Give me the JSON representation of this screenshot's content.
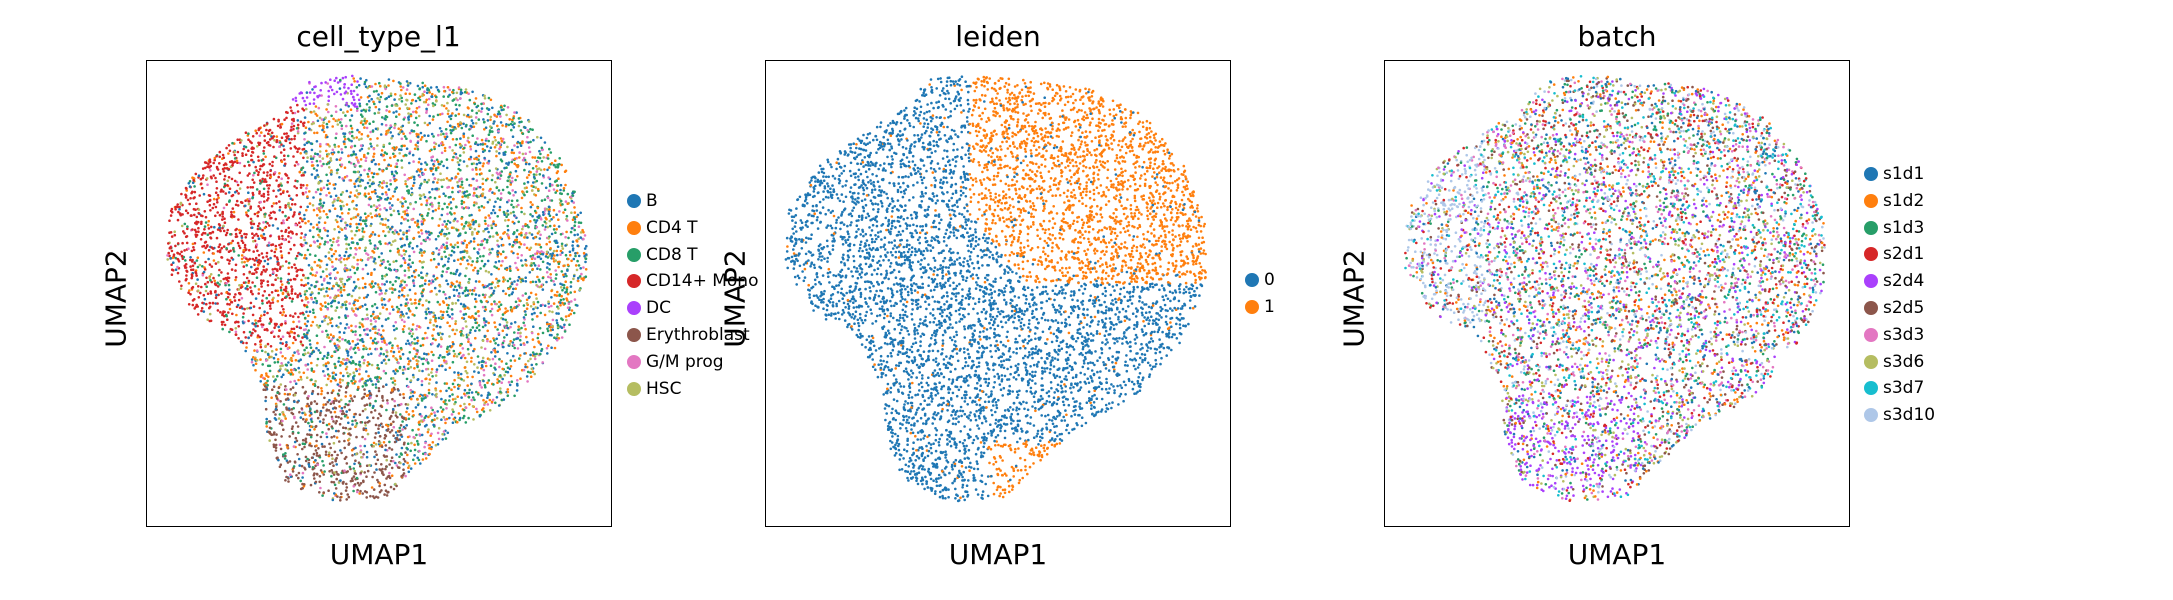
{
  "chart_data": [
    {
      "type": "scatter",
      "title": "cell_type_l1",
      "xlabel": "UMAP1",
      "ylabel": "UMAP2",
      "grid": false,
      "legend_position": "right",
      "series": [
        {
          "name": "B",
          "color": "#1f77b4",
          "weight": 0.1
        },
        {
          "name": "CD4 T",
          "color": "#ff7f0e",
          "weight": 0.22
        },
        {
          "name": "CD8 T",
          "color": "#279e68",
          "weight": 0.18
        },
        {
          "name": "CD14+ Mono",
          "color": "#d62728",
          "weight": 0.18
        },
        {
          "name": "DC",
          "color": "#aa40fc",
          "weight": 0.02
        },
        {
          "name": "Erythroblast",
          "color": "#8c564b",
          "weight": 0.1
        },
        {
          "name": "G/M prog",
          "color": "#e377c2",
          "weight": 0.1
        },
        {
          "name": "HSC",
          "color": "#b5bd61",
          "weight": 0.1
        }
      ]
    },
    {
      "type": "scatter",
      "title": "leiden",
      "xlabel": "UMAP1",
      "ylabel": "UMAP2",
      "grid": false,
      "legend_position": "right",
      "series": [
        {
          "name": "0",
          "color": "#1f77b4",
          "weight": 0.62
        },
        {
          "name": "1",
          "color": "#ff7f0e",
          "weight": 0.38
        }
      ]
    },
    {
      "type": "scatter",
      "title": "batch",
      "xlabel": "UMAP1",
      "ylabel": "UMAP2",
      "grid": false,
      "legend_position": "right",
      "series": [
        {
          "name": "s1d1",
          "color": "#1f77b4",
          "weight": 0.1
        },
        {
          "name": "s1d2",
          "color": "#ff7f0e",
          "weight": 0.1
        },
        {
          "name": "s1d3",
          "color": "#279e68",
          "weight": 0.1
        },
        {
          "name": "s2d1",
          "color": "#d62728",
          "weight": 0.1
        },
        {
          "name": "s2d4",
          "color": "#aa40fc",
          "weight": 0.1
        },
        {
          "name": "s2d5",
          "color": "#8c564b",
          "weight": 0.1
        },
        {
          "name": "s3d3",
          "color": "#e377c2",
          "weight": 0.1
        },
        {
          "name": "s3d6",
          "color": "#b5bd61",
          "weight": 0.1
        },
        {
          "name": "s3d7",
          "color": "#17becf",
          "weight": 0.1
        },
        {
          "name": "s3d10",
          "color": "#aec7e8",
          "weight": 0.1
        }
      ]
    }
  ]
}
